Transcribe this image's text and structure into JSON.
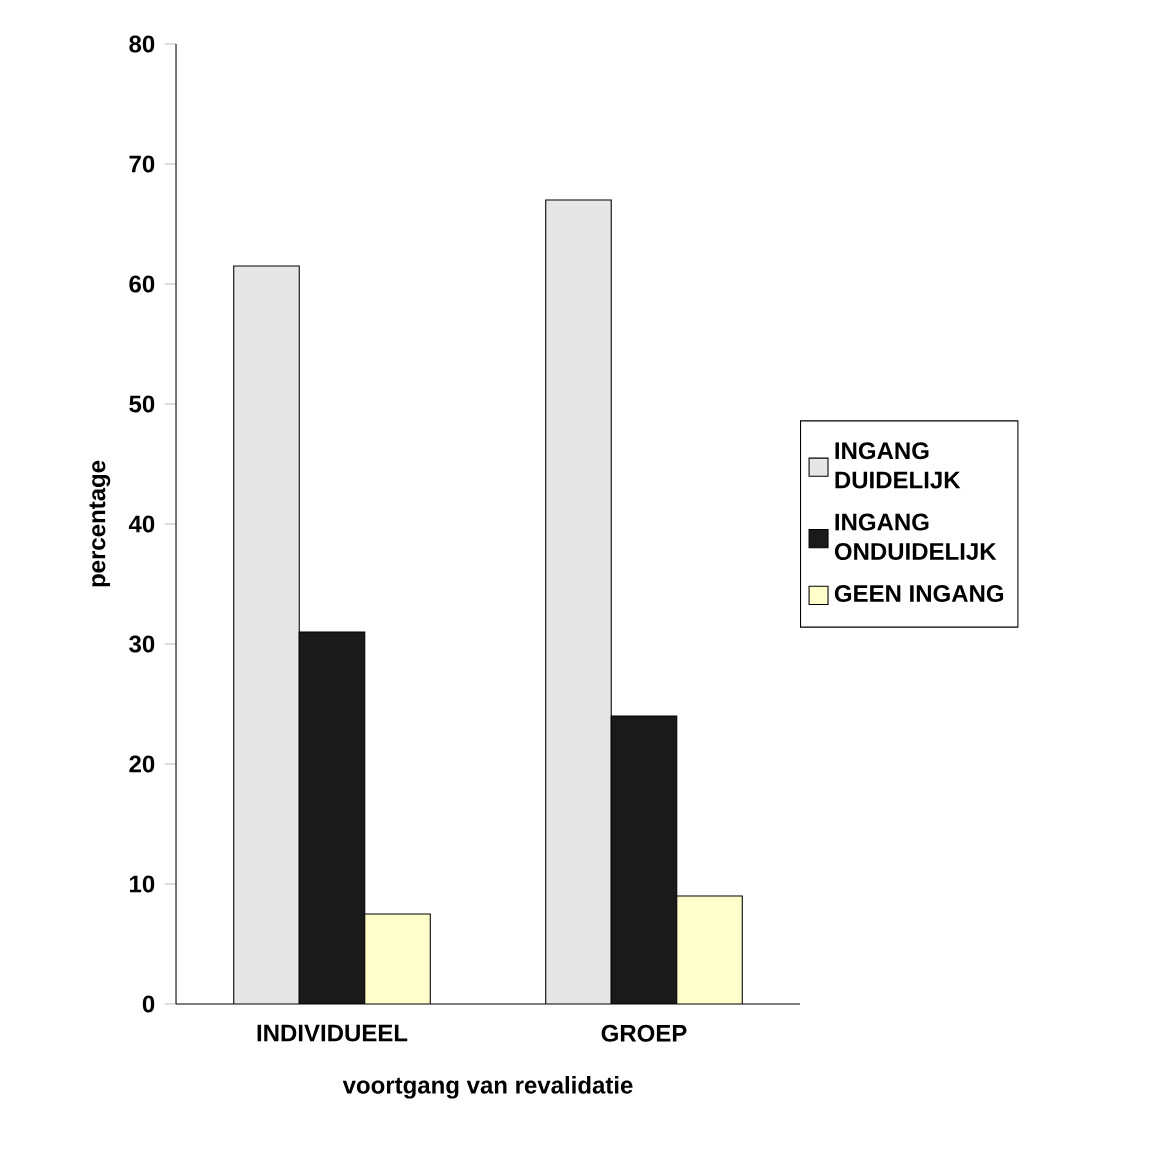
{
  "chart_data": {
    "type": "bar",
    "xlabel": "voortgang van revalidatie",
    "ylabel": "percentage",
    "categories": [
      "INDIVIDUEEL",
      "GROEP"
    ],
    "series": [
      {
        "name": "INGANG DUIDELIJK",
        "color": "#e6e6e6",
        "values": [
          61.5,
          67
        ]
      },
      {
        "name": "INGANG ONDUIDELIJK",
        "color": "#1a1a1a",
        "values": [
          31,
          24
        ]
      },
      {
        "name": "GEEN INGANG",
        "color": "#ffffcc",
        "values": [
          7.5,
          9
        ]
      }
    ],
    "ylim": [
      0,
      80
    ],
    "yticks": [
      0,
      10,
      20,
      30,
      40,
      50,
      60,
      70,
      80
    ],
    "legend": "right",
    "grid": false
  }
}
